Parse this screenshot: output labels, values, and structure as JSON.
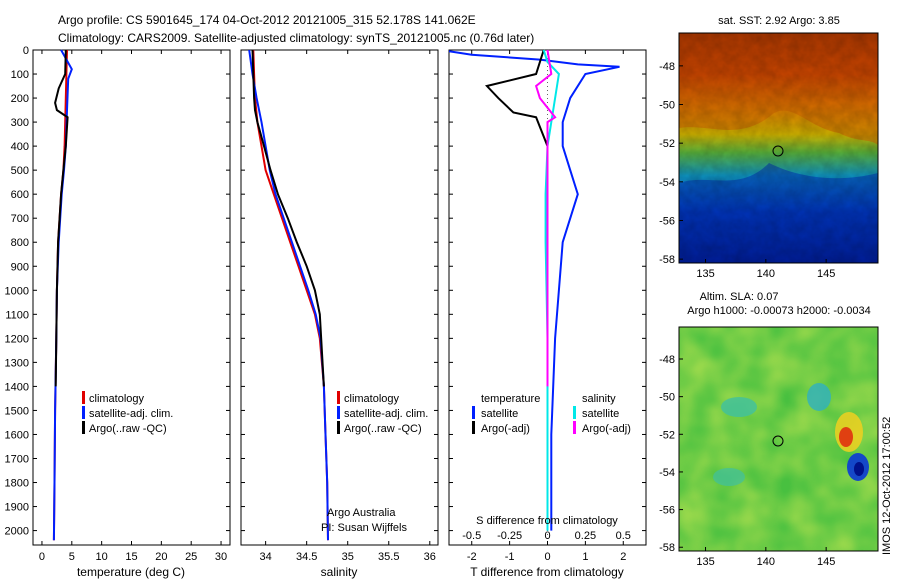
{
  "header": {
    "line1": "Argo profile: CS 5901645_174 04-Oct-2012 20121005_315 52.178S 141.062E",
    "line2": "Climatology: CARS2009. Satellite-adjusted climatology: synTS_20121005.nc (0.76d later)"
  },
  "side_label": "IMOS 12-Oct-2012 17:00:52",
  "colors": {
    "climatology": "#e00000",
    "satellite": "#0020ff",
    "argo": "#000000",
    "salinity_satellite": "#00e8e8",
    "salinity_argo": "#ff00ff"
  },
  "chart_data": [
    {
      "type": "line",
      "id": "temperature",
      "xlabel": "temperature (deg C)",
      "xlim": [
        -1.5,
        31.5
      ],
      "xticks": [
        "0",
        "5",
        "10",
        "15",
        "20",
        "25",
        "30"
      ],
      "xtick_values": [
        0,
        5,
        10,
        15,
        20,
        25,
        30
      ],
      "ylim": [
        0,
        2060
      ],
      "yticks": [
        "0",
        "100",
        "200",
        "300",
        "400",
        "500",
        "600",
        "700",
        "800",
        "900",
        "1000",
        "1100",
        "1200",
        "1300",
        "1400",
        "1500",
        "1600",
        "1700",
        "1800",
        "1900",
        "2000"
      ],
      "ytick_values": [
        0,
        100,
        200,
        300,
        400,
        500,
        600,
        700,
        800,
        900,
        1000,
        1100,
        1200,
        1300,
        1400,
        1500,
        1600,
        1700,
        1800,
        1900,
        2000
      ],
      "legend": [
        "climatology",
        "satellite-adj. clim.",
        "Argo(..raw -QC)"
      ],
      "series": [
        {
          "name": "climatology",
          "color_key": "climatology",
          "x": [
            4.2,
            4.1,
            4.0,
            3.9,
            3.8,
            3.6,
            3.2,
            2.7,
            2.5,
            2.4,
            2.2,
            2.1,
            2.0
          ],
          "y": [
            0,
            100,
            200,
            300,
            400,
            500,
            600,
            800,
            1000,
            1200,
            1500,
            1800,
            2040
          ]
        },
        {
          "name": "satellite-adj. clim.",
          "color_key": "satellite",
          "x": [
            3.2,
            5.0,
            4.4,
            4.2,
            4.0,
            3.7,
            3.3,
            2.8,
            2.5,
            2.4,
            2.2,
            2.1,
            2.0
          ],
          "y": [
            0,
            80,
            120,
            250,
            400,
            500,
            600,
            800,
            1000,
            1200,
            1500,
            1800,
            2040
          ]
        },
        {
          "name": "Argo(..raw -QC)",
          "color_key": "argo",
          "x": [
            4.0,
            3.9,
            2.8,
            2.2,
            2.5,
            4.3,
            4.0,
            3.6,
            3.2,
            2.7,
            2.5,
            2.4,
            2.3
          ],
          "y": [
            0,
            100,
            160,
            220,
            250,
            280,
            400,
            500,
            600,
            800,
            1000,
            1200,
            1400
          ]
        }
      ]
    },
    {
      "type": "line",
      "id": "salinity",
      "xlabel": "salinity",
      "xlim": [
        33.7,
        36.1
      ],
      "xticks": [
        "34",
        "34.5",
        "35",
        "35.5",
        "36"
      ],
      "xtick_values": [
        34,
        34.5,
        35,
        35.5,
        36
      ],
      "ylim": [
        0,
        2060
      ],
      "legend": [
        "climatology",
        "satellite-adj. clim.",
        "Argo(..raw -QC)"
      ],
      "annotation": [
        "Argo Australia",
        "PI: Susan Wijffels"
      ],
      "series": [
        {
          "name": "climatology",
          "color_key": "climatology",
          "x": [
            33.85,
            33.86,
            33.87,
            33.9,
            33.95,
            34.0,
            34.1,
            34.2,
            34.3,
            34.4,
            34.5,
            34.6,
            34.66,
            34.71,
            34.73,
            34.75,
            34.76
          ],
          "y": [
            0,
            100,
            200,
            300,
            400,
            500,
            600,
            700,
            800,
            900,
            1000,
            1100,
            1200,
            1400,
            1600,
            1800,
            2040
          ]
        },
        {
          "name": "satellite-adj. clim.",
          "color_key": "satellite",
          "x": [
            33.8,
            33.84,
            33.89,
            33.95,
            34.0,
            34.05,
            34.12,
            34.22,
            34.32,
            34.42,
            34.52,
            34.61,
            34.67,
            34.71,
            34.73,
            34.75,
            34.76
          ],
          "y": [
            0,
            100,
            200,
            300,
            400,
            500,
            600,
            700,
            800,
            900,
            1000,
            1100,
            1200,
            1400,
            1600,
            1800,
            2040
          ]
        },
        {
          "name": "Argo(..raw -QC)",
          "color_key": "argo",
          "x": [
            33.84,
            33.85,
            33.86,
            33.87,
            33.9,
            33.98,
            34.06,
            34.15,
            34.27,
            34.38,
            34.5,
            34.6,
            34.66,
            34.71
          ],
          "y": [
            0,
            100,
            200,
            250,
            300,
            400,
            500,
            600,
            700,
            800,
            900,
            1000,
            1100,
            1400
          ]
        }
      ]
    },
    {
      "type": "line",
      "id": "differences",
      "xlabel": "T difference from climatology",
      "xlabel2": "S difference from climatology",
      "xlim": [
        -2.6,
        2.6
      ],
      "xticks": [
        "-2",
        "-1",
        "0",
        "1",
        "2"
      ],
      "xtick_values": [
        -2,
        -1,
        0,
        1,
        2
      ],
      "xticks2": [
        "-0.5",
        "-0.25",
        "0",
        "0.25",
        "0.5"
      ],
      "ylim": [
        0,
        2060
      ],
      "legend_left_title": "temperature",
      "legend_right_title": "salinity",
      "legend_left": [
        "satellite",
        "Argo(-adj)"
      ],
      "legend_right": [
        "satellite",
        "Argo(-adj)"
      ],
      "series": [
        {
          "name": "temperature satellite",
          "color_key": "satellite",
          "x": [
            -2.6,
            -2.0,
            -0.2,
            0.8,
            1.9,
            1.0,
            0.6,
            0.4,
            0.4,
            0.6,
            0.8,
            0.4,
            0.2,
            0.1,
            0.1,
            0.1
          ],
          "y": [
            5,
            20,
            40,
            60,
            70,
            100,
            200,
            300,
            400,
            500,
            600,
            800,
            1200,
            1600,
            1800,
            2000
          ]
        },
        {
          "name": "temperature Argo(-adj)",
          "color_key": "argo",
          "x": [
            -0.1,
            -0.3,
            -1.6,
            -1.3,
            -0.9,
            -0.3,
            0.0,
            0.0,
            0.0,
            0.0,
            0.0
          ],
          "y": [
            0,
            100,
            150,
            200,
            260,
            280,
            400,
            600,
            800,
            1200,
            1400
          ]
        },
        {
          "name": "salinity satellite",
          "color_key": "salinity_satellite",
          "x": [
            -0.1,
            0.0,
            0.3,
            0.2,
            0.1,
            0.0,
            -0.05,
            -0.05,
            0.0,
            0.0,
            0.0
          ],
          "y": [
            0,
            50,
            100,
            200,
            300,
            400,
            600,
            800,
            1200,
            1600,
            2000
          ]
        },
        {
          "name": "salinity Argo(-adj)",
          "color_key": "salinity_argo",
          "x": [
            0.0,
            0.1,
            -0.3,
            -0.2,
            0.2,
            0.0,
            0.0,
            0.0,
            0.0,
            0.0
          ],
          "y": [
            0,
            100,
            150,
            200,
            280,
            300,
            400,
            800,
            1200,
            1400
          ]
        }
      ]
    },
    {
      "type": "heatmap",
      "id": "sst-map",
      "title": "sat. SST: 2.92 Argo: 3.85",
      "xticks": [
        "135",
        "140",
        "145"
      ],
      "yticks": [
        "-48",
        "-50",
        "-52",
        "-54",
        "-56",
        "-58"
      ],
      "marker": {
        "lon": 141.062,
        "lat": -52.178
      }
    },
    {
      "type": "heatmap",
      "id": "sla-map",
      "title": "Altim. SLA: 0.07",
      "subtitle": "Argo h1000: -0.00073 h2000: -0.0034",
      "xticks": [
        "135",
        "140",
        "145"
      ],
      "yticks": [
        "-48",
        "-50",
        "-52",
        "-54",
        "-56",
        "-58"
      ],
      "marker": {
        "lon": 141.062,
        "lat": -52.178
      }
    }
  ]
}
